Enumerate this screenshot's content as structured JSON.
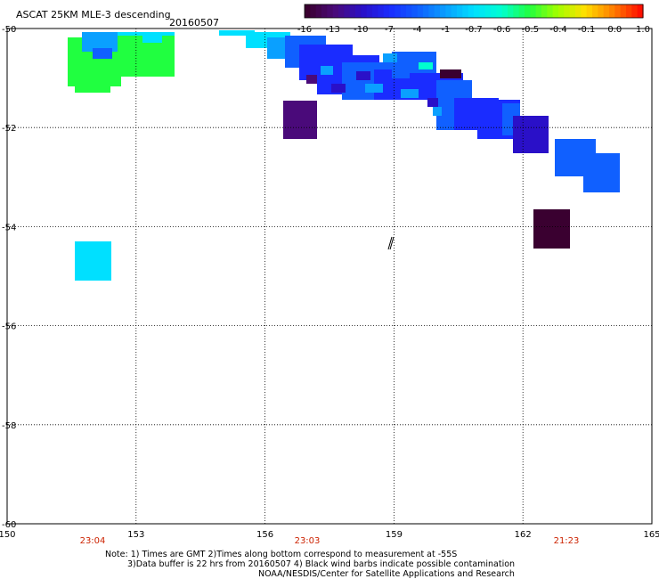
{
  "header": {
    "title": "ASCAT 25KM MLE-3 descending",
    "date": "20160507"
  },
  "colorbar": {
    "tick_labels": [
      "-16",
      "-13",
      "-10",
      "-7",
      "-4",
      "-1",
      "-0.7",
      "-0.6",
      "-0.5",
      "-0.4",
      "-0.1",
      "0.0",
      "1.0"
    ],
    "colors": [
      "#3a0030",
      "#4a0a7a",
      "#2a10c8",
      "#1a2cff",
      "#1060ff",
      "#0aa0ff",
      "#00e0ff",
      "#00ffd0",
      "#20ff40",
      "#a0ff00",
      "#ffe000",
      "#ff8000",
      "#ff1000"
    ]
  },
  "map": {
    "x_axis": {
      "ticks": [
        "150",
        "153",
        "156",
        "159",
        "162",
        "165"
      ],
      "range": [
        150,
        165
      ]
    },
    "y_axis": {
      "ticks": [
        "-50",
        "-52",
        "-54",
        "-56",
        "-58",
        "-60"
      ],
      "range": [
        -60,
        -50
      ]
    },
    "time_labels": [
      "23:04",
      "23:03",
      "21:23"
    ]
  },
  "notes": {
    "line1": "Note: 1) Times are GMT 2)Times along bottom correspond to measurement at -55S",
    "line2": "3)Data buffer is 22 hrs from 20160507 4) Black wind barbs indicate possible contamination",
    "line3": "NOAA/NESDIS/Center for Satellite Applications and Research"
  }
}
